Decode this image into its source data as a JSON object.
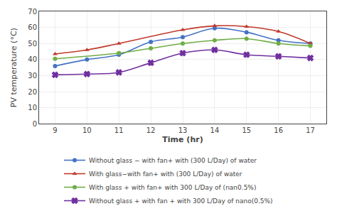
{
  "chart_data": {
    "type": "line",
    "xlabel": "Time (hr)",
    "ylabel": "PV temperature (°C)",
    "x": [
      9,
      10,
      11,
      12,
      13,
      14,
      15,
      16,
      17
    ],
    "series": [
      {
        "name": "Without glass − with fan+ with (300 L/Day) of water",
        "color": "#4472C4",
        "marker": "circle",
        "line_style": "smooth",
        "values": [
          36,
          40,
          43,
          51,
          54,
          59.5,
          57,
          52,
          50
        ]
      },
      {
        "name": "With glass−with fan+ with (300 L/Day) of water",
        "color": "#C0392B",
        "marker": "triangle-up",
        "line_style": "smooth",
        "values": [
          43.5,
          46,
          50,
          null,
          58.5,
          61,
          60.5,
          57.5,
          50
        ]
      },
      {
        "name": "With glass + with fan+ with 300 L/Day of (nan0.5%)",
        "color": "#70AD47",
        "marker": "circle",
        "line_style": "smooth",
        "values": [
          40.5,
          null,
          44,
          47,
          50,
          52,
          53,
          50,
          48.5
        ]
      },
      {
        "name": "Without glass + with fan + with 300 L/Day of nano(0.5%)",
        "color": "#7030A0",
        "marker": "x",
        "line_style": "smooth",
        "values": [
          30.5,
          31,
          32,
          38,
          44,
          46,
          43,
          42,
          41
        ]
      }
    ],
    "xlim": [
      8.5,
      17.5
    ],
    "xticks": [
      9,
      10,
      11,
      12,
      13,
      14,
      15,
      16,
      17
    ],
    "ylim": [
      0,
      70
    ],
    "yticks": [
      0,
      10,
      20,
      30,
      40,
      50,
      60,
      70
    ],
    "grid": true,
    "legend": "bottom"
  }
}
